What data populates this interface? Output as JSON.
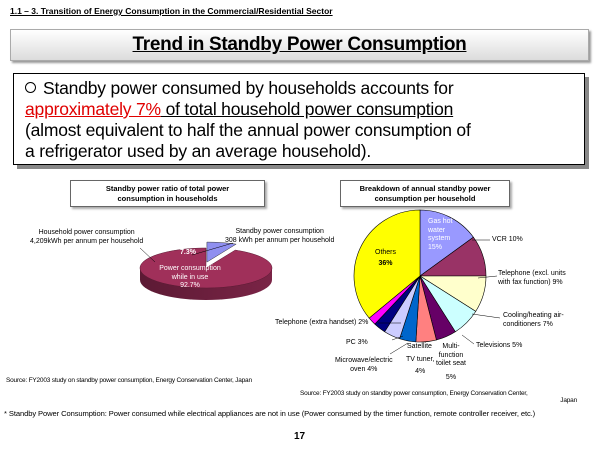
{
  "section_header": "1.1 – 3. Transition of Energy Consumption in the Commercial/Residential Sector",
  "slide_title": "Trend in Standby Power Consumption",
  "callout": {
    "line1": "Standby power consumed by households accounts for",
    "highlight": "approximately 7%",
    "line2_rest": " of total household power consumption",
    "line3": "(almost equivalent to half the annual power consumption of",
    "line4": "a refrigerator used by an average household)."
  },
  "left_chart": {
    "title_line1": "Standby power ratio of total power",
    "title_line2": "consumption in households",
    "label_household_1": "Household power consumption",
    "label_household_2": "4,209kWh per annum per household",
    "label_standby_1": "Standby power consumption",
    "label_standby_2": "308 kWh per annum per household",
    "label_inuse_1": "Power consumption",
    "label_inuse_2": "while in use",
    "label_inuse_3": "92.7%",
    "label_standby_pct": "7.3%",
    "source": "Source: FY2003 study on standby power consumption, Energy Conservation Center, Japan"
  },
  "right_chart": {
    "title_line1": "Breakdown of annual standby power",
    "title_line2": "consumption per household",
    "source_line1": "Source: FY2003 study on standby power consumption, Energy Conservation Center,",
    "source_line2": "Japan",
    "labels": {
      "gas_1": "Gas hot",
      "gas_2": "water",
      "gas_3": "system",
      "gas_4": "15%",
      "vcr": "VCR 10%",
      "tel_fax_1": "Telephone (excl. units",
      "tel_fax_2": "with fax function) 9%",
      "cooling_1": "Cooling/heating air-",
      "cooling_2": "conditioners 7%",
      "tv": "Televisions 5%",
      "toilet_1": "Multi-",
      "toilet_2": "function",
      "toilet_3": "toilet seat",
      "toilet_4": "5%",
      "tuner_1": "TV tuner,",
      "tuner_2": "4%",
      "satellite": "Satellite",
      "microwave_1": "Microwave/electric",
      "microwave_2": "oven 4%",
      "pc": "PC 3%",
      "tel_ext": "Telephone (extra handset) 2%",
      "others_1": "Others",
      "others_2": "36%"
    }
  },
  "chart_data": [
    {
      "type": "pie",
      "categories": [
        "Power consumption while in use",
        "Standby power consumption"
      ],
      "values": [
        92.7,
        7.3
      ],
      "title": "Standby power ratio of total power consumption in households",
      "colors": [
        "#a0305a",
        "#8f8ff0"
      ]
    },
    {
      "type": "pie",
      "categories": [
        "Gas hot water system",
        "VCR",
        "Telephone (excl. units with fax function)",
        "Cooling/heating air-conditioners",
        "Televisions",
        "Multi-function toilet seat",
        "TV tuner, Satellite",
        "Microwave/electric oven",
        "PC",
        "Telephone (extra handset)",
        "Others"
      ],
      "values": [
        15,
        10,
        9,
        7,
        5,
        5,
        4,
        4,
        3,
        2,
        36
      ],
      "title": "Breakdown of annual standby power consumption per household",
      "colors": [
        "#9999ff",
        "#993366",
        "#ffffcc",
        "#ccffff",
        "#660066",
        "#ff8080",
        "#0066cc",
        "#ccccff",
        "#000080",
        "#ff00ff",
        "#ffff00"
      ]
    }
  ],
  "footnote": "* Standby Power Consumption: Power consumed while electrical appliances are not in use (Power consumed by the timer function, remote controller receiver, etc.)",
  "page_number": "17"
}
